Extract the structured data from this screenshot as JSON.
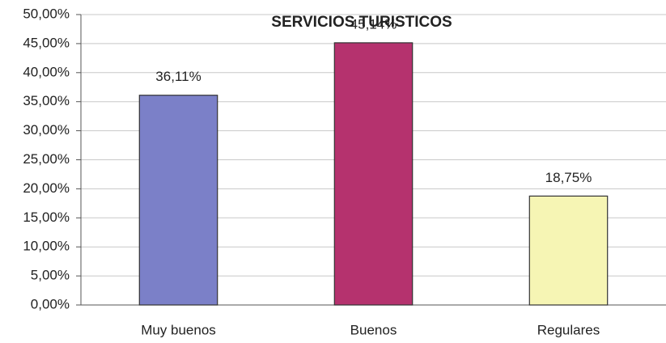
{
  "chart_data": {
    "type": "bar",
    "title": "SERVICIOS TURISTICOS",
    "categories": [
      "Muy buenos",
      "Buenos",
      "Regulares"
    ],
    "values": [
      36.11,
      45.14,
      18.75
    ],
    "value_labels": [
      "36,11%",
      "45,14%",
      "18,75%"
    ],
    "colors": [
      "#7b80c8",
      "#b5326e",
      "#f6f5b4"
    ],
    "ylim": [
      0,
      50
    ],
    "yticks": [
      {
        "value": 0,
        "label": "0,00%"
      },
      {
        "value": 5,
        "label": "5,00%"
      },
      {
        "value": 10,
        "label": "10,00%"
      },
      {
        "value": 15,
        "label": "15,00%"
      },
      {
        "value": 20,
        "label": "20,00%"
      },
      {
        "value": 25,
        "label": "25,00%"
      },
      {
        "value": 30,
        "label": "30,00%"
      },
      {
        "value": 35,
        "label": "35,00%"
      },
      {
        "value": 40,
        "label": "40,00%"
      },
      {
        "value": 45,
        "label": "45,00%"
      },
      {
        "value": 50,
        "label": "50,00%"
      }
    ],
    "grid": true
  }
}
